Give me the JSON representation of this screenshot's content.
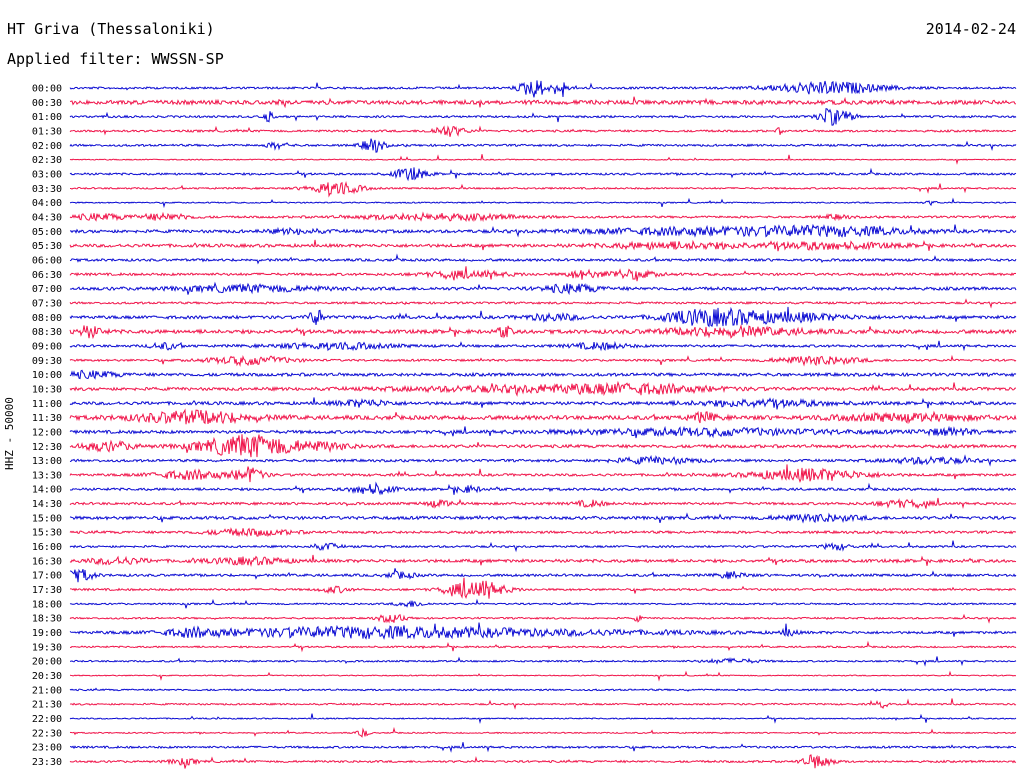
{
  "header": {
    "station": "HT Griva (Thessaloniki)",
    "date": "2014-02-24",
    "filter": "Applied filter: WWSSN-SP"
  },
  "channel_label": "HHZ - 50000",
  "colors": {
    "even": "#0a0ad2",
    "odd": "#f0144a"
  },
  "chart_data": {
    "type": "line",
    "title": "HT Griva (Thessaloniki)",
    "ylabel": "HHZ - 50000",
    "row_labels": [
      "00:00",
      "00:30",
      "01:00",
      "01:30",
      "02:00",
      "02:30",
      "03:00",
      "03:30",
      "04:00",
      "04:30",
      "05:00",
      "05:30",
      "06:00",
      "06:30",
      "07:00",
      "07:30",
      "08:00",
      "08:30",
      "09:00",
      "09:30",
      "10:00",
      "10:30",
      "11:00",
      "11:30",
      "12:00",
      "12:30",
      "13:00",
      "13:30",
      "14:00",
      "14:30",
      "15:00",
      "15:30",
      "16:00",
      "16:30",
      "17:00",
      "17:30",
      "18:00",
      "18:30",
      "19:00",
      "19:30",
      "20:00",
      "20:30",
      "21:00",
      "21:30",
      "22:00",
      "22:30",
      "23:00",
      "23:30"
    ],
    "noise": [
      1,
      2,
      1,
      1,
      1,
      0.5,
      1,
      0.8,
      0.6,
      1,
      1.5,
      1.5,
      1.2,
      1.2,
      1.5,
      1,
      1.5,
      1.8,
      1.2,
      1,
      1.5,
      1.5,
      1.5,
      2,
      1.5,
      1.5,
      1.2,
      1.2,
      1.2,
      1.2,
      1.5,
      1.2,
      1,
      1.5,
      1.2,
      1,
      0.8,
      0.8,
      1.2,
      0.8,
      0.8,
      0.5,
      0.8,
      0.8,
      0.6,
      0.6,
      1,
      1
    ],
    "events": [
      [
        0,
        0.49,
        9,
        0.01
      ],
      [
        0,
        0.52,
        10,
        0.004
      ],
      [
        0,
        0.8,
        6,
        0.04
      ],
      [
        2,
        0.21,
        5,
        0.003
      ],
      [
        2,
        0.8,
        3,
        0.004
      ],
      [
        2,
        0.81,
        7,
        0.012
      ],
      [
        3,
        0.4,
        5,
        0.012
      ],
      [
        3,
        0.75,
        3,
        0.002
      ],
      [
        4,
        0.22,
        3,
        0.008
      ],
      [
        4,
        0.32,
        7,
        0.008
      ],
      [
        6,
        0.36,
        6,
        0.012
      ],
      [
        7,
        0.28,
        7,
        0.018
      ],
      [
        8,
        0.91,
        2,
        0.004
      ],
      [
        9,
        0.03,
        3,
        0.02
      ],
      [
        9,
        0.1,
        3,
        0.02
      ],
      [
        9,
        0.39,
        3,
        0.06
      ],
      [
        9,
        0.81,
        2,
        0.01
      ],
      [
        10,
        0.24,
        2,
        0.02
      ],
      [
        10,
        0.65,
        3,
        0.08
      ],
      [
        10,
        0.8,
        4,
        0.06
      ],
      [
        11,
        0.64,
        3,
        0.05
      ],
      [
        11,
        0.8,
        3,
        0.05
      ],
      [
        13,
        0.42,
        3,
        0.03
      ],
      [
        13,
        0.54,
        4,
        0.01
      ],
      [
        13,
        0.59,
        4,
        0.02
      ],
      [
        14,
        0.19,
        3,
        0.05
      ],
      [
        14,
        0.53,
        4,
        0.02
      ],
      [
        16,
        0.26,
        8,
        0.005
      ],
      [
        16,
        0.51,
        3,
        0.02
      ],
      [
        16,
        0.67,
        6,
        0.03
      ],
      [
        16,
        0.74,
        5,
        0.05
      ],
      [
        17,
        0.02,
        5,
        0.01
      ],
      [
        17,
        0.46,
        5,
        0.005
      ],
      [
        17,
        0.7,
        4,
        0.05
      ],
      [
        18,
        0.1,
        3,
        0.01
      ],
      [
        18,
        0.28,
        3,
        0.04
      ],
      [
        18,
        0.56,
        3,
        0.02
      ],
      [
        19,
        0.19,
        4,
        0.03
      ],
      [
        19,
        0.79,
        4,
        0.03
      ],
      [
        20,
        0.02,
        3,
        0.02
      ],
      [
        21,
        0.5,
        3,
        0.1
      ],
      [
        21,
        0.6,
        3,
        0.05
      ],
      [
        22,
        0.31,
        3,
        0.02
      ],
      [
        22,
        0.73,
        3,
        0.05
      ],
      [
        23,
        0.13,
        6,
        0.04
      ],
      [
        23,
        0.67,
        4,
        0.01
      ],
      [
        23,
        0.88,
        3,
        0.05
      ],
      [
        24,
        0.67,
        3,
        0.1
      ],
      [
        24,
        0.93,
        3,
        0.02
      ],
      [
        25,
        0.04,
        4,
        0.02
      ],
      [
        25,
        0.19,
        11,
        0.035
      ],
      [
        25,
        0.27,
        3,
        0.02
      ],
      [
        26,
        0.62,
        3,
        0.03
      ],
      [
        26,
        0.91,
        3,
        0.03
      ],
      [
        27,
        0.13,
        4,
        0.03
      ],
      [
        27,
        0.19,
        7,
        0.01
      ],
      [
        27,
        0.78,
        6,
        0.04
      ],
      [
        28,
        0.32,
        5,
        0.015
      ],
      [
        28,
        0.42,
        3,
        0.01
      ],
      [
        29,
        0.39,
        3,
        0.01
      ],
      [
        29,
        0.55,
        3,
        0.01
      ],
      [
        29,
        0.88,
        3,
        0.02
      ],
      [
        30,
        0.79,
        3,
        0.03
      ],
      [
        31,
        0.19,
        3,
        0.03
      ],
      [
        32,
        0.27,
        3,
        0.01
      ],
      [
        32,
        0.81,
        3,
        0.01
      ],
      [
        33,
        0.05,
        3,
        0.02
      ],
      [
        33,
        0.19,
        3,
        0.03
      ],
      [
        34,
        0.01,
        6,
        0.01
      ],
      [
        34,
        0.35,
        3,
        0.01
      ],
      [
        34,
        0.7,
        3,
        0.01
      ],
      [
        35,
        0.43,
        9,
        0.02
      ],
      [
        35,
        0.28,
        3,
        0.01
      ],
      [
        36,
        0.36,
        3,
        0.01
      ],
      [
        37,
        0.34,
        4,
        0.01
      ],
      [
        37,
        0.6,
        3,
        0.003
      ],
      [
        38,
        0.13,
        3,
        0.02
      ],
      [
        38,
        0.28,
        3,
        0.1
      ],
      [
        38,
        0.42,
        3,
        0.15
      ],
      [
        38,
        0.76,
        4,
        0.005
      ],
      [
        40,
        0.7,
        2,
        0.02
      ],
      [
        43,
        0.86,
        4,
        0.003
      ],
      [
        45,
        0.31,
        4,
        0.004
      ],
      [
        47,
        0.12,
        3,
        0.01
      ],
      [
        47,
        0.79,
        7,
        0.01
      ]
    ]
  }
}
